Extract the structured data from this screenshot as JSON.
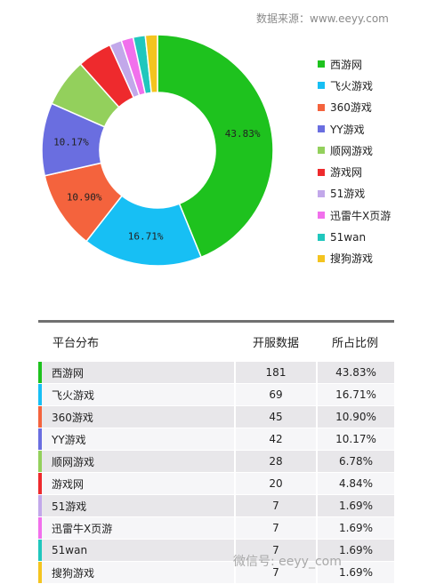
{
  "source_label": "数据来源：www.eeyy.com",
  "watermark": "微信号: eeyy_com",
  "chart_data": {
    "type": "pie",
    "slices": [
      {
        "label": "西游网",
        "value": 43.83,
        "color": "#1ec21e",
        "data_label": "43.83%"
      },
      {
        "label": "飞火游戏",
        "value": 16.71,
        "color": "#17bff4",
        "data_label": "16.71%"
      },
      {
        "label": "360游戏",
        "value": 10.9,
        "color": "#f4633d",
        "data_label": "10.90%"
      },
      {
        "label": "YY游戏",
        "value": 10.17,
        "color": "#6a6ee0",
        "data_label": "10.17%"
      },
      {
        "label": "顺网游戏",
        "value": 6.78,
        "color": "#93d05c",
        "data_label": ""
      },
      {
        "label": "游戏网",
        "value": 4.84,
        "color": "#ee2a2d",
        "data_label": ""
      },
      {
        "label": "51游戏",
        "value": 1.69,
        "color": "#c2a8ea",
        "data_label": ""
      },
      {
        "label": "迅雷牛X页游",
        "value": 1.69,
        "color": "#f170ec",
        "data_label": ""
      },
      {
        "label": "51wan",
        "value": 1.69,
        "color": "#20c7bd",
        "data_label": ""
      },
      {
        "label": "搜狗游戏",
        "value": 1.69,
        "color": "#f4c41f",
        "data_label": ""
      }
    ],
    "legend_position": "right"
  },
  "table": {
    "headers": [
      "平台分布",
      "开服数据",
      "所占比例"
    ],
    "rows": [
      {
        "name": "西游网",
        "count": "181",
        "pct": "43.83%",
        "color": "#1ec21e"
      },
      {
        "name": "飞火游戏",
        "count": "69",
        "pct": "16.71%",
        "color": "#17bff4"
      },
      {
        "name": "360游戏",
        "count": "45",
        "pct": "10.90%",
        "color": "#f4633d"
      },
      {
        "name": "YY游戏",
        "count": "42",
        "pct": "10.17%",
        "color": "#6a6ee0"
      },
      {
        "name": "顺网游戏",
        "count": "28",
        "pct": "6.78%",
        "color": "#93d05c"
      },
      {
        "name": "游戏网",
        "count": "20",
        "pct": "4.84%",
        "color": "#ee2a2d"
      },
      {
        "name": "51游戏",
        "count": "7",
        "pct": "1.69%",
        "color": "#c2a8ea"
      },
      {
        "name": "迅雷牛X页游",
        "count": "7",
        "pct": "1.69%",
        "color": "#f170ec"
      },
      {
        "name": "51wan",
        "count": "7",
        "pct": "1.69%",
        "color": "#20c7bd"
      },
      {
        "name": "搜狗游戏",
        "count": "7",
        "pct": "1.69%",
        "color": "#f4c41f"
      }
    ]
  }
}
